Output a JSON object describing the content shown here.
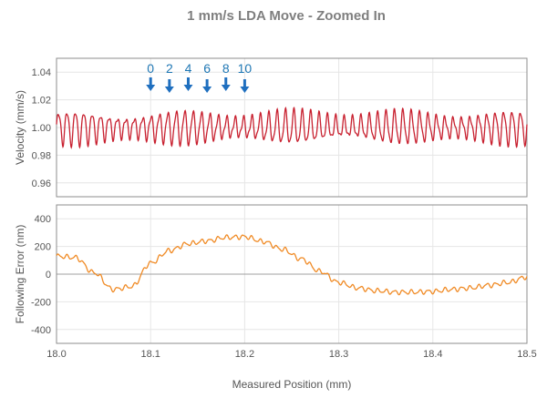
{
  "chart_data": [
    {
      "type": "line",
      "title": "1 mm/s LDA Move - Zoomed In",
      "xlabel": "Measured Position (mm)",
      "ylabel": "Velocity (mm/s)",
      "xlim": [
        18.0,
        18.5
      ],
      "ylim": [
        0.95,
        1.05
      ],
      "yticks": [
        "1.04",
        "1.02",
        "1.00",
        "0.98",
        "0.96"
      ],
      "ytick_values": [
        1.04,
        1.02,
        1.0,
        0.98,
        0.96
      ],
      "grid": true,
      "series": [
        {
          "name": "Velocity",
          "color": "#c8202f",
          "mean": 1.0,
          "amplitude": 0.012,
          "approx_cycles_in_range": 56
        }
      ],
      "markers": {
        "color": "#1f6fbf",
        "labels": [
          "0",
          "2",
          "4",
          "6",
          "8",
          "10"
        ],
        "positions": [
          18.1,
          18.12,
          18.14,
          18.16,
          18.18,
          18.2
        ]
      }
    },
    {
      "type": "line",
      "xlabel": "Measured Position (mm)",
      "ylabel": "Following Error (nm)",
      "xlim": [
        18.0,
        18.5
      ],
      "ylim": [
        -500,
        500
      ],
      "xticks": [
        "18.0",
        "18.1",
        "18.2",
        "18.3",
        "18.4",
        "18.5"
      ],
      "xtick_values": [
        18.0,
        18.1,
        18.2,
        18.3,
        18.4,
        18.5
      ],
      "yticks": [
        "400",
        "200",
        "0",
        "-200",
        "-400"
      ],
      "ytick_values": [
        400,
        200,
        0,
        -200,
        -400
      ],
      "grid": true,
      "series": [
        {
          "name": "Following Error",
          "color": "#f08a24",
          "x": [
            18.0,
            18.02,
            18.04,
            18.06,
            18.08,
            18.1,
            18.12,
            18.14,
            18.16,
            18.18,
            18.2,
            18.22,
            18.24,
            18.26,
            18.28,
            18.3,
            18.32,
            18.34,
            18.36,
            18.38,
            18.4,
            18.42,
            18.44,
            18.46,
            18.48,
            18.5
          ],
          "y": [
            130,
            120,
            10,
            -110,
            -90,
            80,
            170,
            220,
            240,
            265,
            270,
            235,
            180,
            110,
            20,
            -60,
            -100,
            -120,
            -130,
            -130,
            -125,
            -110,
            -100,
            -80,
            -60,
            -20
          ]
        }
      ]
    }
  ]
}
